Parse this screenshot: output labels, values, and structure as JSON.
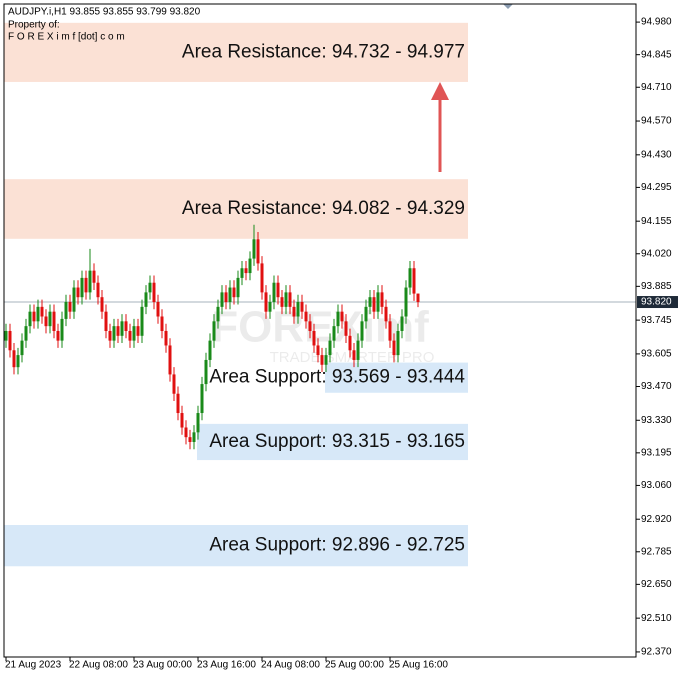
{
  "chart_data": {
    "type": "candlestick",
    "header": {
      "line1": "AUDJPY.i,H1  93.855 93.855 93.799 93.820",
      "line2": "Property of:",
      "line3": "F O R E X i m f [dot] c o m"
    },
    "watermark": {
      "brand": "FOREXimf",
      "tagline": "TRADE SMARTER PRO"
    },
    "ylim": [
      92.349,
      95.055
    ],
    "yticks": [
      {
        "value": 94.98,
        "label": "94.980"
      },
      {
        "value": 94.845,
        "label": "94.845"
      },
      {
        "value": 94.71,
        "label": "94.710"
      },
      {
        "value": 94.57,
        "label": "94.570"
      },
      {
        "value": 94.43,
        "label": "94.430"
      },
      {
        "value": 94.295,
        "label": "94.295"
      },
      {
        "value": 94.155,
        "label": "94.155"
      },
      {
        "value": 94.02,
        "label": "94.020"
      },
      {
        "value": 93.885,
        "label": "93.885"
      },
      {
        "value": 93.745,
        "label": "93.745"
      },
      {
        "value": 93.605,
        "label": "93.605"
      },
      {
        "value": 93.47,
        "label": "93.470"
      },
      {
        "value": 93.33,
        "label": "93.330"
      },
      {
        "value": 93.195,
        "label": "93.195"
      },
      {
        "value": 93.06,
        "label": "93.060"
      },
      {
        "value": 92.92,
        "label": "92.920"
      },
      {
        "value": 92.785,
        "label": "92.785"
      },
      {
        "value": 92.65,
        "label": "92.650"
      },
      {
        "value": 92.51,
        "label": "92.510"
      },
      {
        "value": 92.37,
        "label": "92.370"
      }
    ],
    "current_price": {
      "value": 93.82,
      "label": "93.820"
    },
    "up_color": "#1a8a1a",
    "down_color": "#e01010",
    "categories": [
      "21 Aug 2023",
      null,
      null,
      null,
      null,
      null,
      null,
      null,
      null,
      null,
      null,
      null,
      null,
      null,
      null,
      null,
      "22 Aug 08:00",
      null,
      null,
      null,
      null,
      null,
      null,
      null,
      null,
      null,
      null,
      null,
      null,
      null,
      null,
      null,
      "23 Aug 00:00",
      null,
      null,
      null,
      null,
      null,
      null,
      null,
      null,
      null,
      null,
      null,
      null,
      null,
      null,
      null,
      "23 Aug 16:00",
      null,
      null,
      null,
      null,
      null,
      null,
      null,
      null,
      null,
      null,
      null,
      null,
      null,
      null,
      null,
      "24 Aug 08:00",
      null,
      null,
      null,
      null,
      null,
      null,
      null,
      null,
      null,
      null,
      null,
      null,
      null,
      null,
      null,
      "25 Aug 00:00",
      null,
      null,
      null,
      null,
      null,
      null,
      null,
      null,
      null,
      null,
      null,
      null,
      null,
      null,
      null,
      "25 Aug 16:00",
      null,
      null,
      null,
      null,
      null,
      null,
      null
    ],
    "open": [
      93.66,
      93.7,
      93.62,
      93.55,
      93.6,
      93.66,
      93.72,
      93.78,
      93.74,
      93.8,
      93.76,
      93.72,
      93.78,
      93.7,
      93.66,
      93.75,
      93.82,
      93.78,
      93.88,
      93.84,
      93.92,
      93.86,
      93.95,
      93.9,
      93.84,
      93.78,
      93.7,
      93.66,
      93.72,
      93.68,
      93.74,
      93.7,
      93.66,
      93.72,
      93.68,
      93.8,
      93.86,
      93.9,
      93.82,
      93.76,
      93.7,
      93.64,
      93.52,
      93.44,
      93.36,
      93.3,
      93.26,
      93.24,
      93.28,
      93.36,
      93.48,
      93.58,
      93.66,
      93.74,
      93.8,
      93.86,
      93.82,
      93.88,
      93.84,
      93.92,
      93.96,
      93.94,
      94.0,
      94.08,
      93.98,
      93.86,
      93.78,
      93.82,
      93.9,
      93.84,
      93.8,
      93.86,
      93.8,
      93.76,
      93.82,
      93.78,
      93.74,
      93.7,
      93.64,
      93.6,
      93.56,
      93.6,
      93.66,
      93.72,
      93.78,
      93.74,
      93.68,
      93.62,
      93.58,
      93.66,
      93.74,
      93.8,
      93.84,
      93.78,
      93.86,
      93.8,
      93.74,
      93.66,
      93.6,
      93.7,
      93.76,
      93.88,
      93.96,
      93.855
    ],
    "high": [
      93.73,
      93.73,
      93.65,
      93.63,
      93.69,
      93.75,
      93.81,
      93.81,
      93.83,
      93.83,
      93.79,
      93.81,
      93.81,
      93.73,
      93.78,
      93.85,
      93.85,
      93.91,
      93.91,
      93.95,
      93.95,
      94.04,
      93.98,
      93.93,
      93.87,
      93.81,
      93.73,
      93.75,
      93.75,
      93.77,
      93.77,
      93.73,
      93.75,
      93.75,
      93.83,
      93.89,
      93.93,
      93.93,
      93.85,
      93.79,
      93.73,
      93.67,
      93.55,
      93.47,
      93.39,
      93.33,
      93.29,
      93.31,
      93.39,
      93.51,
      93.61,
      93.69,
      93.77,
      93.83,
      93.89,
      93.89,
      93.91,
      93.91,
      93.95,
      93.99,
      93.99,
      94.03,
      94.14,
      94.11,
      94.01,
      93.89,
      93.85,
      93.93,
      93.93,
      93.87,
      93.89,
      93.89,
      93.83,
      93.85,
      93.85,
      93.81,
      93.77,
      93.73,
      93.67,
      93.63,
      93.63,
      93.69,
      93.75,
      93.81,
      93.81,
      93.77,
      93.71,
      93.65,
      93.69,
      93.77,
      93.83,
      93.87,
      93.87,
      93.89,
      93.89,
      93.83,
      93.77,
      93.69,
      93.73,
      93.79,
      93.91,
      93.99,
      93.99,
      93.855
    ],
    "low": [
      93.63,
      93.59,
      93.52,
      93.52,
      93.57,
      93.63,
      93.69,
      93.71,
      93.71,
      93.73,
      93.69,
      93.69,
      93.67,
      93.63,
      93.63,
      93.72,
      93.75,
      93.75,
      93.81,
      93.81,
      93.83,
      93.83,
      93.87,
      93.81,
      93.75,
      93.67,
      93.63,
      93.63,
      93.65,
      93.65,
      93.67,
      93.63,
      93.63,
      93.65,
      93.65,
      93.77,
      93.83,
      93.79,
      93.73,
      93.67,
      93.61,
      93.49,
      93.41,
      93.33,
      93.27,
      93.23,
      93.21,
      93.21,
      93.25,
      93.33,
      93.45,
      93.55,
      93.63,
      93.71,
      93.77,
      93.79,
      93.79,
      93.81,
      93.81,
      93.89,
      93.91,
      93.91,
      93.97,
      93.95,
      93.83,
      93.75,
      93.75,
      93.79,
      93.81,
      93.77,
      93.77,
      93.77,
      93.73,
      93.73,
      93.75,
      93.71,
      93.67,
      93.61,
      93.57,
      93.53,
      93.53,
      93.57,
      93.63,
      93.69,
      93.71,
      93.65,
      93.59,
      93.55,
      93.55,
      93.63,
      93.71,
      93.77,
      93.75,
      93.75,
      93.77,
      93.71,
      93.63,
      93.57,
      93.57,
      93.67,
      93.73,
      93.85,
      93.825,
      93.799
    ],
    "close": [
      93.7,
      93.62,
      93.55,
      93.6,
      93.66,
      93.72,
      93.78,
      93.74,
      93.8,
      93.76,
      93.72,
      93.78,
      93.7,
      93.66,
      93.75,
      93.82,
      93.78,
      93.88,
      93.84,
      93.92,
      93.86,
      93.95,
      93.9,
      93.84,
      93.78,
      93.7,
      93.66,
      93.72,
      93.68,
      93.74,
      93.7,
      93.66,
      93.72,
      93.68,
      93.8,
      93.86,
      93.9,
      93.82,
      93.76,
      93.7,
      93.64,
      93.52,
      93.44,
      93.36,
      93.3,
      93.26,
      93.24,
      93.28,
      93.36,
      93.48,
      93.58,
      93.66,
      93.74,
      93.8,
      93.86,
      93.82,
      93.88,
      93.84,
      93.92,
      93.96,
      93.94,
      94.0,
      94.08,
      93.98,
      93.86,
      93.78,
      93.82,
      93.9,
      93.84,
      93.8,
      93.86,
      93.8,
      93.76,
      93.82,
      93.78,
      93.74,
      93.7,
      93.64,
      93.6,
      93.56,
      93.6,
      93.66,
      93.72,
      93.78,
      93.74,
      93.68,
      93.62,
      93.58,
      93.66,
      93.74,
      93.8,
      93.84,
      93.78,
      93.86,
      93.8,
      93.74,
      93.66,
      93.6,
      93.7,
      93.76,
      93.88,
      93.96,
      93.855,
      93.82
    ],
    "zones": [
      {
        "label": "Area Resistance: 94.732 - 94.977",
        "low": 94.732,
        "high": 94.977,
        "color": "#fbe1d5"
      },
      {
        "label": "Area Resistance: 94.082 - 94.329",
        "low": 94.082,
        "high": 94.329,
        "color": "#fbe1d5"
      },
      {
        "label": "Area Support: 93.569 - 93.444",
        "low": 93.444,
        "high": 93.569,
        "color": "#d7e8f8"
      },
      {
        "label": "Area Support: 93.315 - 93.165",
        "low": 93.165,
        "high": 93.315,
        "color": "#d7e8f8"
      },
      {
        "label": "Area Support: 92.896 - 92.725",
        "low": 92.725,
        "high": 92.896,
        "color": "#d7e8f8"
      }
    ]
  }
}
